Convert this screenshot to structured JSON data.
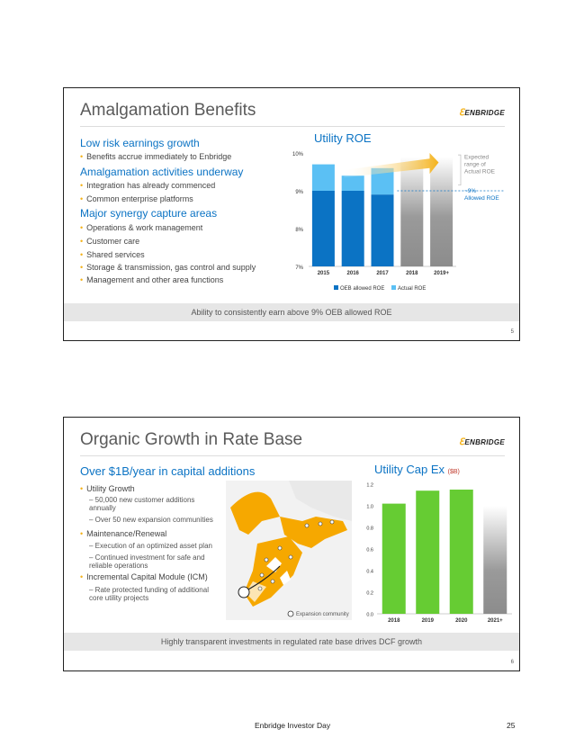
{
  "slide1": {
    "title": "Amalgamation Benefits",
    "logo": "ENBRIDGE",
    "sections": [
      {
        "header": "Low risk earnings growth",
        "bullets": [
          "Benefits accrue immediately to Enbridge"
        ]
      },
      {
        "header": "Amalgamation activities underway",
        "bullets": [
          "Integration has already commenced",
          "Common enterprise platforms"
        ]
      },
      {
        "header": "Major synergy capture areas",
        "bullets": [
          "Operations & work management",
          "Customer care",
          "Shared services",
          "Storage & transmission, gas control and supply",
          "Management and other area functions"
        ]
      }
    ],
    "banner": "Ability to consistently earn above 9% OEB allowed ROE",
    "page_number": "5"
  },
  "slide2": {
    "title": "Organic Growth in Rate Base",
    "logo": "ENBRIDGE",
    "header": "Over $1B/year in capital additions",
    "bullets": [
      {
        "label": "Utility Growth",
        "subs": [
          "50,000 new customer additions annually",
          "Over 50 new expansion communities"
        ]
      },
      {
        "label": "Maintenance/Renewal",
        "subs": [
          "Execution of an optimized asset plan",
          "Continued investment for safe and reliable operations"
        ]
      },
      {
        "label": "Incremental Capital Module (ICM)",
        "subs": [
          "Rate protected funding of additional core utility projects"
        ]
      }
    ],
    "map_legend": "Expansion community",
    "banner": "Highly transparent investments in regulated rate base drives DCF growth",
    "page_number": "6"
  },
  "chart_data": [
    {
      "type": "bar",
      "title": "Utility ROE",
      "categories": [
        "2015",
        "2016",
        "2017",
        "2018",
        "2019+"
      ],
      "series": [
        {
          "name": "OEB allowed ROE",
          "values": [
            9.0,
            9.0,
            8.9,
            null,
            null
          ]
        },
        {
          "name": "Actual ROE",
          "values": [
            9.7,
            9.4,
            9.6,
            null,
            null
          ]
        }
      ],
      "expected_range": {
        "categories": [
          "2018",
          "2019+"
        ],
        "low": 7.0,
        "high": 9.9
      },
      "ylim": [
        7,
        10
      ],
      "yticks": [
        "7%",
        "8%",
        "9%",
        "10%"
      ],
      "annotations": {
        "range": "Expected range of Actual ROE",
        "allowed": "~9% Allowed ROE"
      },
      "legend": [
        "OEB allowed ROE",
        "Actual ROE"
      ]
    },
    {
      "type": "bar",
      "title": "Utility Cap Ex",
      "unit": "($B)",
      "categories": [
        "2018",
        "2019",
        "2020",
        "2021+"
      ],
      "values": [
        1.02,
        1.14,
        1.15,
        null
      ],
      "projection": {
        "category": "2021+",
        "high": 1.0
      },
      "ylim": [
        0,
        1.2
      ],
      "yticks": [
        "0.0",
        "0.2",
        "0.4",
        "0.6",
        "0.8",
        "1.0",
        "1.2"
      ]
    }
  ],
  "footer": {
    "text": "Enbridge Investor Day",
    "page": "25"
  },
  "colors": {
    "blue": "#0b73c4",
    "light_blue": "#5bc0f4",
    "green": "#66cc33",
    "orange": "#f4b21a",
    "grey": "#9a9a9a"
  }
}
